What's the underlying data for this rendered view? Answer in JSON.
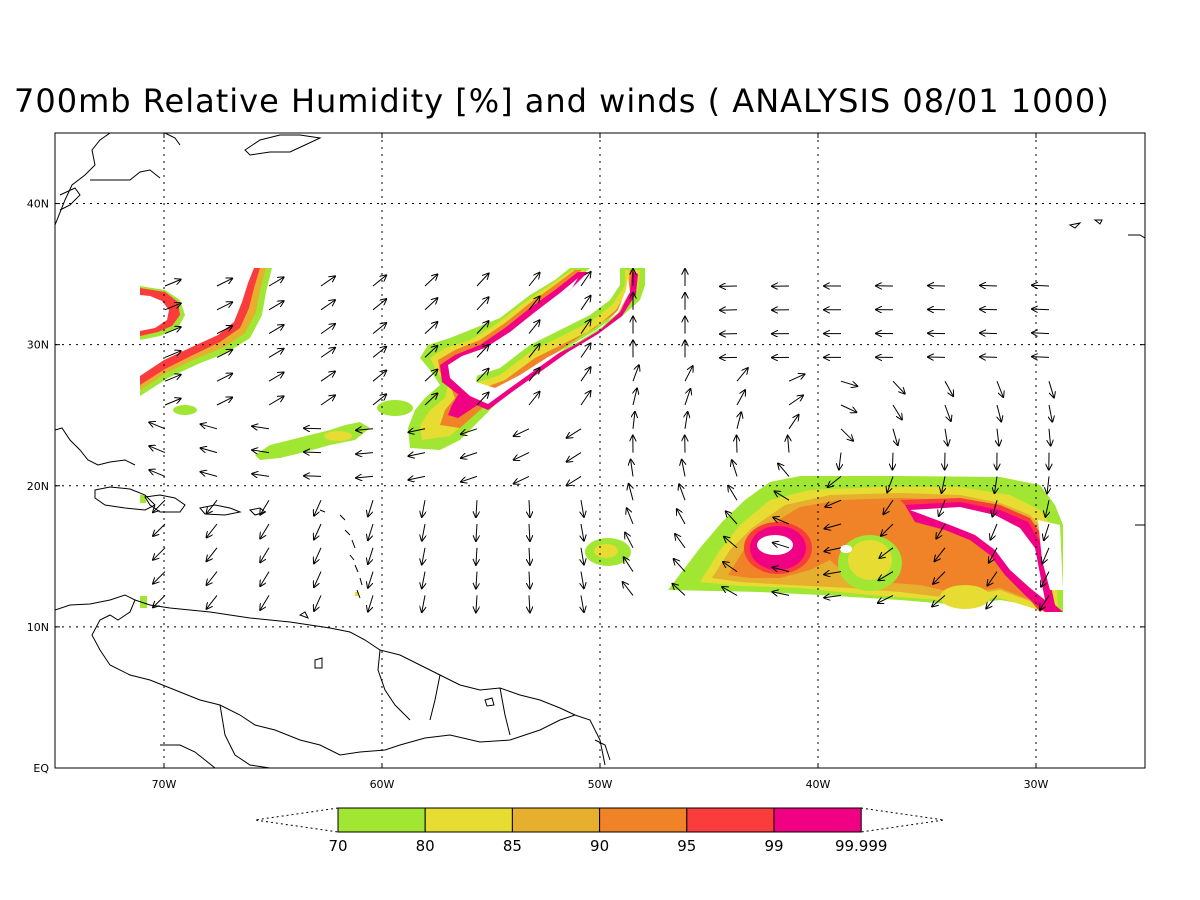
{
  "title": "700mb Relative Humidity [%] and winds ( ANALYSIS 08/01 1000)",
  "map": {
    "lon_range": [
      -75,
      -25
    ],
    "lat_range": [
      0,
      45
    ],
    "lat_ticks": [
      {
        "value": 0,
        "label": "EQ"
      },
      {
        "value": 10,
        "label": "10N"
      },
      {
        "value": 20,
        "label": "20N"
      },
      {
        "value": 30,
        "label": "30N"
      },
      {
        "value": 40,
        "label": "40N"
      }
    ],
    "lon_ticks": [
      {
        "value": -70,
        "label": "70W"
      },
      {
        "value": -60,
        "label": "60W"
      },
      {
        "value": -50,
        "label": "50W"
      },
      {
        "value": -40,
        "label": "40W"
      },
      {
        "value": -30,
        "label": "30W"
      }
    ],
    "grid": "dotted"
  },
  "colorbar": {
    "labels": [
      "70",
      "80",
      "85",
      "90",
      "95",
      "99",
      "99.999"
    ],
    "colors": [
      "#a0e632",
      "#e6dc32",
      "#e6af2d",
      "#f08228",
      "#fa3c3c",
      "#f00082"
    ]
  }
}
